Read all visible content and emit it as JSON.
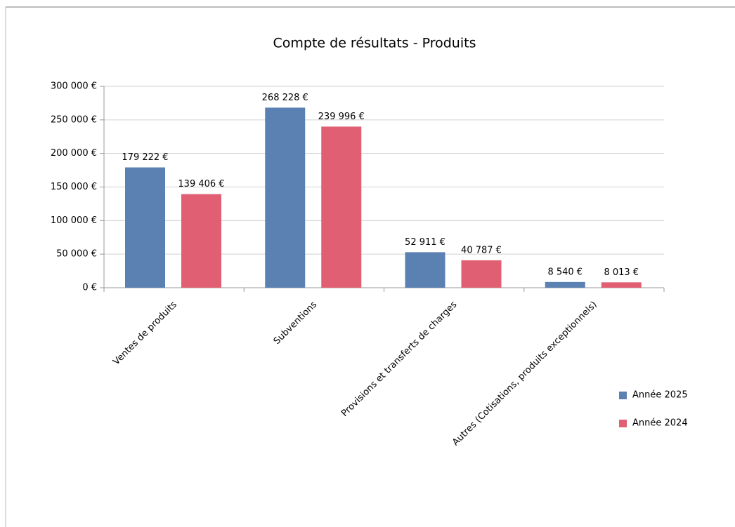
{
  "chart_data": {
    "type": "bar",
    "title": "Compte de résultats - Produits",
    "categories": [
      "Ventes de produits",
      "Subventions",
      "Provisions et transferts de charges",
      "Autres (Cotisations, produits exceptionnels)"
    ],
    "series": [
      {
        "name": "Année 2025",
        "color": "#5b80b2",
        "values": [
          179222,
          268228,
          52911,
          8540
        ],
        "value_labels": [
          "179 222 €",
          "268 228 €",
          "52 911 €",
          "8 540 €"
        ]
      },
      {
        "name": "Année 2024",
        "color": "#e05f72",
        "values": [
          139406,
          239996,
          40787,
          8013
        ],
        "value_labels": [
          "139 406 €",
          "239 996 €",
          "40 787 €",
          "8 013 €"
        ]
      }
    ],
    "ylim": [
      0,
      300000
    ],
    "yticks": [
      {
        "value": 0,
        "label": "0 €"
      },
      {
        "value": 50000,
        "label": "50 000 €"
      },
      {
        "value": 100000,
        "label": "100 000 €"
      },
      {
        "value": 150000,
        "label": "150 000 €"
      },
      {
        "value": 200000,
        "label": "200 000 €"
      },
      {
        "value": 250000,
        "label": "250 000 €"
      },
      {
        "value": 300000,
        "label": "300 000 €"
      }
    ],
    "grid": true,
    "legend": "right"
  }
}
